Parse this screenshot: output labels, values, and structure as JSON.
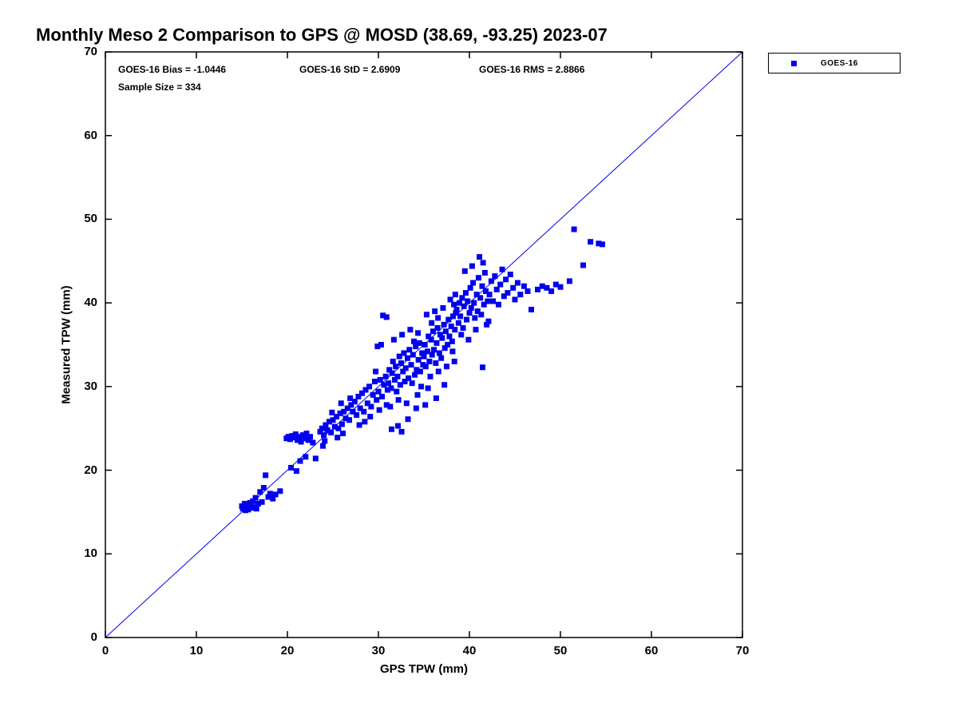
{
  "title": "Monthly Meso 2 Comparison to GPS @ MOSD (38.69, -93.25) 2023-07",
  "annotations": {
    "bias": "GOES-16 Bias = -1.0446",
    "std": "GOES-16 StD = 2.6909",
    "rms": "GOES-16 RMS = 2.8866",
    "sample": "Sample Size = 334"
  },
  "legend": {
    "label": "GOES-16",
    "marker_color": "#0000EE"
  },
  "chart_data": {
    "type": "scatter",
    "title": "Monthly Meso 2 Comparison to GPS @ MOSD (38.69, -93.25) 2023-07",
    "xlabel": "GPS TPW (mm)",
    "ylabel": "Measured TPW (mm)",
    "xlim": [
      0,
      70
    ],
    "ylim": [
      0,
      70
    ],
    "xticks": [
      0,
      10,
      20,
      30,
      40,
      50,
      60,
      70
    ],
    "yticks": [
      0,
      10,
      20,
      30,
      40,
      50,
      60,
      70
    ],
    "grid": false,
    "legend_position": "outside-top-right",
    "axis_color": "#000000",
    "line_color": "#0000EE",
    "reference_line": {
      "from": [
        0,
        0
      ],
      "to": [
        70,
        70
      ]
    },
    "stats": {
      "bias": -1.0446,
      "std": 2.6909,
      "rms": 2.8866,
      "sample_size": 334
    },
    "series": [
      {
        "name": "GOES-16",
        "marker": "square",
        "color": "#0000EE",
        "points": [
          [
            15.0,
            15.7
          ],
          [
            15.1,
            15.4
          ],
          [
            15.3,
            16.0
          ],
          [
            15.4,
            15.2
          ],
          [
            15.6,
            15.8
          ],
          [
            15.7,
            15.3
          ],
          [
            15.9,
            16.1
          ],
          [
            16.0,
            15.5
          ],
          [
            16.2,
            16.3
          ],
          [
            16.3,
            15.6
          ],
          [
            16.5,
            16.7
          ],
          [
            16.6,
            15.4
          ],
          [
            16.8,
            16.0
          ],
          [
            17.0,
            17.4
          ],
          [
            17.2,
            16.2
          ],
          [
            17.4,
            17.9
          ],
          [
            17.6,
            19.4
          ],
          [
            17.9,
            16.8
          ],
          [
            18.1,
            17.2
          ],
          [
            18.4,
            16.6
          ],
          [
            18.7,
            17.1
          ],
          [
            19.2,
            17.5
          ],
          [
            19.9,
            23.8
          ],
          [
            20.1,
            24.0
          ],
          [
            20.3,
            23.7
          ],
          [
            20.5,
            24.1
          ],
          [
            20.7,
            23.9
          ],
          [
            20.9,
            24.3
          ],
          [
            21.1,
            23.6
          ],
          [
            21.3,
            24.0
          ],
          [
            21.5,
            23.4
          ],
          [
            21.7,
            24.2
          ],
          [
            21.9,
            23.8
          ],
          [
            22.1,
            24.4
          ],
          [
            22.3,
            23.6
          ],
          [
            22.5,
            24.0
          ],
          [
            22.8,
            23.3
          ],
          [
            21.4,
            21.1
          ],
          [
            22.0,
            21.6
          ],
          [
            23.1,
            21.4
          ],
          [
            20.4,
            20.3
          ],
          [
            21.0,
            19.9
          ],
          [
            23.6,
            24.6
          ],
          [
            23.8,
            25.0
          ],
          [
            24.0,
            24.2
          ],
          [
            24.2,
            25.4
          ],
          [
            24.4,
            24.8
          ],
          [
            24.6,
            25.8
          ],
          [
            24.8,
            24.5
          ],
          [
            25.0,
            26.0
          ],
          [
            25.2,
            25.2
          ],
          [
            25.4,
            26.4
          ],
          [
            25.6,
            25.0
          ],
          [
            25.8,
            26.8
          ],
          [
            26.0,
            25.5
          ],
          [
            26.2,
            27.0
          ],
          [
            26.4,
            26.2
          ],
          [
            26.6,
            27.4
          ],
          [
            26.8,
            26.0
          ],
          [
            27.0,
            27.8
          ],
          [
            25.5,
            23.9
          ],
          [
            26.1,
            24.4
          ],
          [
            24.1,
            23.5
          ],
          [
            26.9,
            28.6
          ],
          [
            25.9,
            28.0
          ],
          [
            24.9,
            26.9
          ],
          [
            23.9,
            22.9
          ],
          [
            27.2,
            27.0
          ],
          [
            27.4,
            28.2
          ],
          [
            27.6,
            26.6
          ],
          [
            27.8,
            28.8
          ],
          [
            28.0,
            27.4
          ],
          [
            28.2,
            29.2
          ],
          [
            28.4,
            27.0
          ],
          [
            28.6,
            29.6
          ],
          [
            28.8,
            28.0
          ],
          [
            29.0,
            30.0
          ],
          [
            29.2,
            27.6
          ],
          [
            29.4,
            29.0
          ],
          [
            29.6,
            30.6
          ],
          [
            29.8,
            28.4
          ],
          [
            30.0,
            29.4
          ],
          [
            30.2,
            30.8
          ],
          [
            30.4,
            28.8
          ],
          [
            30.6,
            30.2
          ],
          [
            30.8,
            31.2
          ],
          [
            31.0,
            29.6
          ],
          [
            28.5,
            25.8
          ],
          [
            29.1,
            26.4
          ],
          [
            30.1,
            27.2
          ],
          [
            30.9,
            27.8
          ],
          [
            27.9,
            25.4
          ],
          [
            29.9,
            34.8
          ],
          [
            30.3,
            35.0
          ],
          [
            30.5,
            38.5
          ],
          [
            30.9,
            38.3
          ],
          [
            29.7,
            31.8
          ],
          [
            31.1,
            30.4
          ],
          [
            31.2,
            32.0
          ],
          [
            31.4,
            29.8
          ],
          [
            31.5,
            31.6
          ],
          [
            31.6,
            33.0
          ],
          [
            31.8,
            30.8
          ],
          [
            31.9,
            32.4
          ],
          [
            32.0,
            29.4
          ],
          [
            32.1,
            31.2
          ],
          [
            32.3,
            33.6
          ],
          [
            32.4,
            30.2
          ],
          [
            32.5,
            32.8
          ],
          [
            32.7,
            31.8
          ],
          [
            32.8,
            34.0
          ],
          [
            32.9,
            30.6
          ],
          [
            33.0,
            32.2
          ],
          [
            33.2,
            33.4
          ],
          [
            33.3,
            31.0
          ],
          [
            33.4,
            34.4
          ],
          [
            33.6,
            32.6
          ],
          [
            33.7,
            30.4
          ],
          [
            33.8,
            33.8
          ],
          [
            34.0,
            31.4
          ],
          [
            34.1,
            34.8
          ],
          [
            34.2,
            32.0
          ],
          [
            34.4,
            33.2
          ],
          [
            34.5,
            35.2
          ],
          [
            34.6,
            31.8
          ],
          [
            34.8,
            34.0
          ],
          [
            34.9,
            32.6
          ],
          [
            31.3,
            27.6
          ],
          [
            32.2,
            28.4
          ],
          [
            33.1,
            28.0
          ],
          [
            34.3,
            29.0
          ],
          [
            34.7,
            30.0
          ],
          [
            31.7,
            35.6
          ],
          [
            32.6,
            36.2
          ],
          [
            33.5,
            36.8
          ],
          [
            33.9,
            35.4
          ],
          [
            34.35,
            36.4
          ],
          [
            31.45,
            24.9
          ],
          [
            32.15,
            25.3
          ],
          [
            33.25,
            26.1
          ],
          [
            34.15,
            27.4
          ],
          [
            32.55,
            24.6
          ],
          [
            35.0,
            33.6
          ],
          [
            35.1,
            35.0
          ],
          [
            35.2,
            32.4
          ],
          [
            35.4,
            34.2
          ],
          [
            35.5,
            36.0
          ],
          [
            35.6,
            33.0
          ],
          [
            35.8,
            35.6
          ],
          [
            35.9,
            33.8
          ],
          [
            36.0,
            36.6
          ],
          [
            36.1,
            34.4
          ],
          [
            36.3,
            32.8
          ],
          [
            36.4,
            35.2
          ],
          [
            36.5,
            37.0
          ],
          [
            36.7,
            34.0
          ],
          [
            36.8,
            36.2
          ],
          [
            36.9,
            33.4
          ],
          [
            37.0,
            35.8
          ],
          [
            37.2,
            37.4
          ],
          [
            37.3,
            34.6
          ],
          [
            37.4,
            36.6
          ],
          [
            37.6,
            35.0
          ],
          [
            37.7,
            38.0
          ],
          [
            37.8,
            36.0
          ],
          [
            38.0,
            37.2
          ],
          [
            38.1,
            35.4
          ],
          [
            38.2,
            38.4
          ],
          [
            38.4,
            36.8
          ],
          [
            38.5,
            38.8
          ],
          [
            35.3,
            38.6
          ],
          [
            36.2,
            39.0
          ],
          [
            37.1,
            39.4
          ],
          [
            38.3,
            39.8
          ],
          [
            35.7,
            31.2
          ],
          [
            36.6,
            31.8
          ],
          [
            37.5,
            32.4
          ],
          [
            38.35,
            33.0
          ],
          [
            35.45,
            29.8
          ],
          [
            36.35,
            28.6
          ],
          [
            37.25,
            30.2
          ],
          [
            35.15,
            27.8
          ],
          [
            38.45,
            41.0
          ],
          [
            37.9,
            40.4
          ],
          [
            36.55,
            38.2
          ],
          [
            35.85,
            37.6
          ],
          [
            38.15,
            34.2
          ],
          [
            38.6,
            39.2
          ],
          [
            38.8,
            37.6
          ],
          [
            38.9,
            40.0
          ],
          [
            39.0,
            38.4
          ],
          [
            39.2,
            40.6
          ],
          [
            39.3,
            37.0
          ],
          [
            39.4,
            39.6
          ],
          [
            39.6,
            41.2
          ],
          [
            39.7,
            38.0
          ],
          [
            39.8,
            40.2
          ],
          [
            40.0,
            38.8
          ],
          [
            40.1,
            41.8
          ],
          [
            40.2,
            39.4
          ],
          [
            40.4,
            42.4
          ],
          [
            40.5,
            40.0
          ],
          [
            40.6,
            38.2
          ],
          [
            40.8,
            41.0
          ],
          [
            40.9,
            39.0
          ],
          [
            41.0,
            43.0
          ],
          [
            41.2,
            40.6
          ],
          [
            41.3,
            38.6
          ],
          [
            41.4,
            42.0
          ],
          [
            41.6,
            39.8
          ],
          [
            41.7,
            43.6
          ],
          [
            41.8,
            41.4
          ],
          [
            42.0,
            40.2
          ],
          [
            39.5,
            43.8
          ],
          [
            40.3,
            44.4
          ],
          [
            41.1,
            45.5
          ],
          [
            41.5,
            44.8
          ],
          [
            39.1,
            36.2
          ],
          [
            40.7,
            36.8
          ],
          [
            41.9,
            37.4
          ],
          [
            41.45,
            32.3
          ],
          [
            39.9,
            35.6
          ],
          [
            42.2,
            41.0
          ],
          [
            42.4,
            42.6
          ],
          [
            42.6,
            40.2
          ],
          [
            42.8,
            43.2
          ],
          [
            43.0,
            41.6
          ],
          [
            43.2,
            39.8
          ],
          [
            43.4,
            42.2
          ],
          [
            43.6,
            44.0
          ],
          [
            43.8,
            40.8
          ],
          [
            44.0,
            42.8
          ],
          [
            44.2,
            41.2
          ],
          [
            44.5,
            43.4
          ],
          [
            44.8,
            41.8
          ],
          [
            45.0,
            40.4
          ],
          [
            45.3,
            42.4
          ],
          [
            45.6,
            41.0
          ],
          [
            46.0,
            42.0
          ],
          [
            46.4,
            41.4
          ],
          [
            46.8,
            39.2
          ],
          [
            42.1,
            37.8
          ],
          [
            47.5,
            41.6
          ],
          [
            48.0,
            42.0
          ],
          [
            48.5,
            41.8
          ],
          [
            49.0,
            41.4
          ],
          [
            49.5,
            42.2
          ],
          [
            50.0,
            41.9
          ],
          [
            51.0,
            42.6
          ],
          [
            51.5,
            48.8
          ],
          [
            52.5,
            44.5
          ],
          [
            53.3,
            47.3
          ],
          [
            54.2,
            47.1
          ],
          [
            54.6,
            47.0
          ]
        ]
      }
    ]
  }
}
